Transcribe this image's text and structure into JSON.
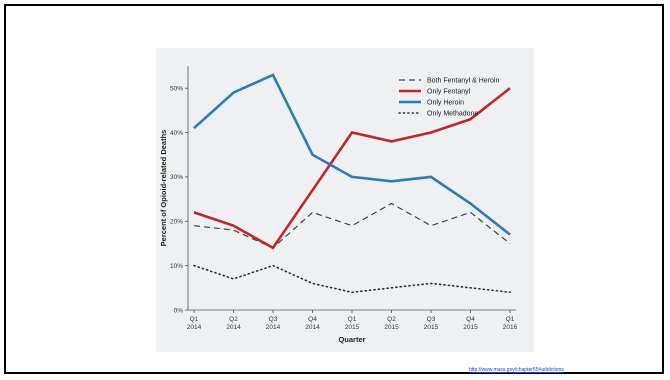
{
  "source": {
    "link_text": "http://www.mass.gov/chapter55#addictions"
  },
  "chart_data": {
    "type": "line",
    "xlabel": "Quarter",
    "ylabel": "Percent of Opioid-related Deaths",
    "categories": [
      [
        "Q1",
        "2014"
      ],
      [
        "Q2",
        "2014"
      ],
      [
        "Q3",
        "2014"
      ],
      [
        "Q4",
        "2014"
      ],
      [
        "Q1",
        "2015"
      ],
      [
        "Q2",
        "2015"
      ],
      [
        "Q3",
        "2015"
      ],
      [
        "Q4",
        "2015"
      ],
      [
        "Q1",
        "2016"
      ]
    ],
    "ylim": [
      0,
      55
    ],
    "yticks": [
      0,
      10,
      20,
      30,
      40,
      50
    ],
    "ytick_labels": [
      "0%",
      "10%",
      "20%",
      "30%",
      "40%",
      "50%"
    ],
    "grid": false,
    "legend_position": "top-right",
    "series": [
      {
        "name": "Both Fentanyl & Heroin",
        "style": "dashed",
        "color": "#444444",
        "values": [
          19,
          18,
          14,
          22,
          19,
          24,
          19,
          22,
          15
        ]
      },
      {
        "name": "Only Fentanyl",
        "style": "solid",
        "color": "#c0272d",
        "values": [
          22,
          19,
          14,
          27,
          40,
          38,
          40,
          43,
          50
        ]
      },
      {
        "name": "Only Heroin",
        "style": "solid",
        "color": "#2a7bbf",
        "values": [
          41,
          49,
          53,
          35,
          30,
          29,
          30,
          24,
          17
        ]
      },
      {
        "name": "Only Methadone",
        "style": "dotted",
        "color": "#333333",
        "values": [
          10,
          7,
          10,
          6,
          4,
          5,
          6,
          5,
          4
        ]
      }
    ]
  }
}
